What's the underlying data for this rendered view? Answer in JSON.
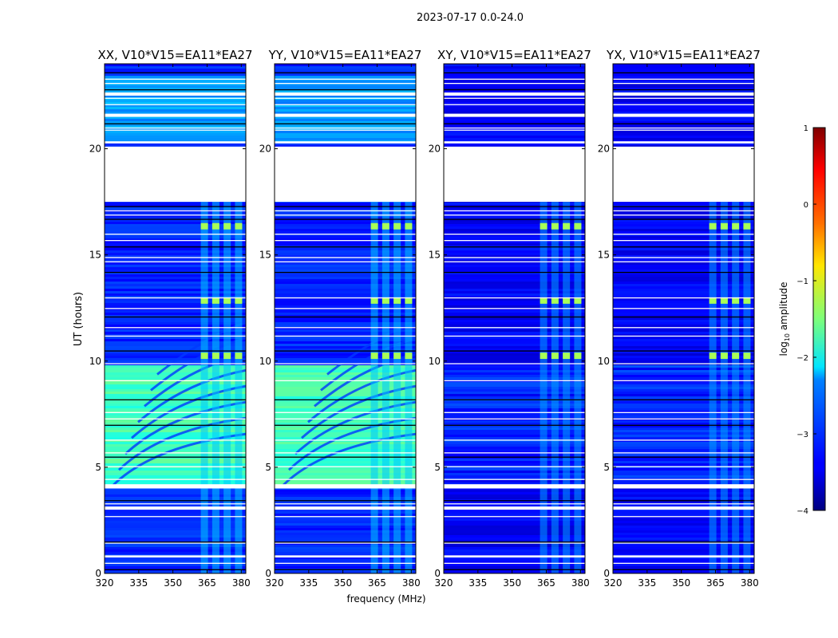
{
  "figure": {
    "suptitle": "2023-07-17 0.0-24.0",
    "ylabel": "UT (hours)",
    "xlabel": "frequency (MHz)",
    "panels": [
      {
        "title": "XX, V10*V15=EA11*EA27",
        "kind": "parallel"
      },
      {
        "title": "YY, V10*V15=EA11*EA27",
        "kind": "parallel"
      },
      {
        "title": "XY, V10*V15=EA11*EA27",
        "kind": "cross"
      },
      {
        "title": "YX, V10*V15=EA11*EA27",
        "kind": "cross"
      }
    ],
    "colorbar": {
      "label_text": "log",
      "label_sub": "10",
      "label_rest": " amplitude",
      "ticks": [
        "1",
        "0",
        "−1",
        "−2",
        "−3",
        "−4"
      ],
      "range": [
        -4,
        1
      ],
      "colormap": "jet"
    }
  },
  "chart_data": {
    "type": "heatmap",
    "title": "2023-07-17 0.0-24.0",
    "xlabel": "frequency (MHz)",
    "ylabel": "UT (hours)",
    "xlim": [
      320,
      382
    ],
    "ylim": [
      0,
      24
    ],
    "xticks": [
      320,
      335,
      350,
      365,
      380
    ],
    "yticks": [
      0,
      5,
      10,
      15,
      20
    ],
    "color_range": [
      -4,
      1
    ],
    "color_label": "log10 amplitude",
    "series": [
      {
        "name": "XX, V10*V15=EA11*EA27",
        "background_level": -3.2,
        "daytime_level": -1.8
      },
      {
        "name": "YY, V10*V15=EA11*EA27",
        "background_level": -3.2,
        "daytime_level": -1.8
      },
      {
        "name": "XY, V10*V15=EA11*EA27",
        "background_level": -3.4,
        "daytime_level": -2.8
      },
      {
        "name": "YX, V10*V15=EA11*EA27",
        "background_level": -3.4,
        "daytime_level": -2.8
      }
    ],
    "flagged_ut_ranges": [
      [
        17.5,
        20.1
      ],
      [
        4.0,
        4.2
      ],
      [
        3.0,
        3.15
      ],
      [
        0.75,
        0.85
      ],
      [
        21.5,
        21.65
      ],
      [
        20.25,
        20.35
      ],
      [
        22.5,
        22.65
      ]
    ],
    "rfi_channels_mhz": [
      364,
      369,
      374,
      379
    ],
    "rfi_bursts_ut": [
      10.1,
      12.7,
      16.2
    ]
  }
}
